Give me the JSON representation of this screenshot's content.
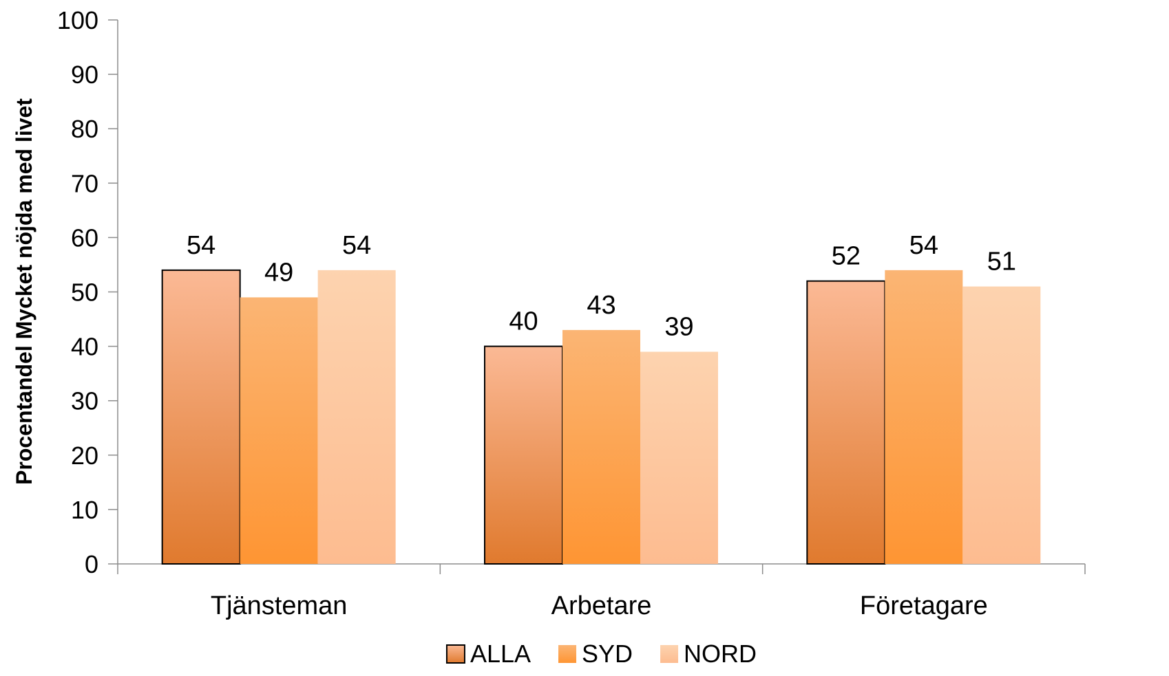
{
  "chart_data": {
    "type": "bar",
    "title": "",
    "xlabel": "",
    "ylabel": "Procentandel Mycket nöjda med livet",
    "ylim": [
      0,
      100
    ],
    "yticks": [
      0,
      10,
      20,
      30,
      40,
      50,
      60,
      70,
      80,
      90,
      100
    ],
    "categories": [
      "Tjänsteman",
      "Arbetare",
      "Företagare"
    ],
    "series": [
      {
        "name": "ALLA",
        "values": [
          54,
          40,
          52
        ],
        "color_top": "#fbb995",
        "color_bottom": "#e07a2e",
        "outlined": true
      },
      {
        "name": "SYD",
        "values": [
          49,
          43,
          54
        ],
        "color_top": "#fbb574",
        "color_bottom": "#fe9533",
        "outlined": false
      },
      {
        "name": "NORD",
        "values": [
          54,
          39,
          51
        ],
        "color_top": "#fdd3af",
        "color_bottom": "#fdbc90",
        "outlined": false
      }
    ],
    "data_labels": true,
    "grid": false,
    "legend_position": "bottom"
  }
}
